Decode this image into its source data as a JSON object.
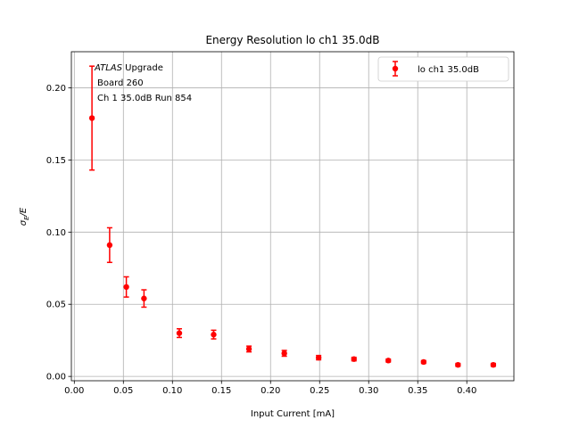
{
  "chart_data": {
    "type": "scatter",
    "title": "Energy Resolution lo ch1 35.0dB",
    "xlabel": "Input Current [mA]",
    "ylabel_main": "σ",
    "ylabel_sub": "E",
    "ylabel_tail": "/E",
    "xlim": [
      -0.003,
      0.448
    ],
    "ylim": [
      -0.003,
      0.225
    ],
    "xticks": [
      0.0,
      0.05,
      0.1,
      0.15,
      0.2,
      0.25,
      0.3,
      0.35,
      0.4
    ],
    "xtick_labels": [
      "0.00",
      "0.05",
      "0.10",
      "0.15",
      "0.20",
      "0.25",
      "0.30",
      "0.35",
      "0.40"
    ],
    "yticks": [
      0.0,
      0.05,
      0.1,
      0.15,
      0.2
    ],
    "ytick_labels": [
      "0.00",
      "0.05",
      "0.10",
      "0.15",
      "0.20"
    ],
    "grid": true,
    "color": "#ff0000",
    "legend": {
      "placement": "top-right",
      "label": "lo ch1 35.0dB"
    },
    "annotations": {
      "line1_italic": "ATLAS",
      "line1_rest": " Upgrade",
      "line2": "Board 260",
      "line3": "Ch 1 35.0dB  Run 854"
    },
    "series": [
      {
        "name": "lo ch1 35.0dB",
        "x": [
          0.018,
          0.036,
          0.053,
          0.071,
          0.107,
          0.142,
          0.178,
          0.214,
          0.249,
          0.285,
          0.32,
          0.356,
          0.391,
          0.427
        ],
        "y": [
          0.179,
          0.091,
          0.062,
          0.054,
          0.03,
          0.029,
          0.019,
          0.016,
          0.013,
          0.012,
          0.011,
          0.01,
          0.008,
          0.008
        ],
        "yerr": [
          0.036,
          0.012,
          0.007,
          0.006,
          0.003,
          0.003,
          0.002,
          0.002,
          0.0015,
          0.0012,
          0.001,
          0.001,
          0.001,
          0.001
        ]
      }
    ]
  }
}
